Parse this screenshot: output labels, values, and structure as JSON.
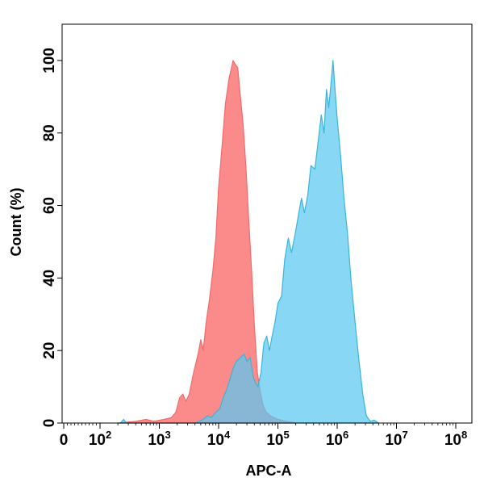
{
  "chart_data": {
    "type": "area",
    "xlabel": "APC-A",
    "ylabel": "Count (%)",
    "x_scale": "biexponential-log",
    "xlim": [
      0,
      100000000
    ],
    "ylim": [
      0,
      110
    ],
    "x_ticks": [
      {
        "value": 0,
        "base": "0",
        "exp": ""
      },
      {
        "value": 100,
        "base": "10",
        "exp": "2"
      },
      {
        "value": 1000,
        "base": "10",
        "exp": "3"
      },
      {
        "value": 10000,
        "base": "10",
        "exp": "4"
      },
      {
        "value": 100000,
        "base": "10",
        "exp": "5"
      },
      {
        "value": 1000000,
        "base": "10",
        "exp": "6"
      },
      {
        "value": 10000000,
        "base": "10",
        "exp": "7"
      },
      {
        "value": 100000000,
        "base": "10",
        "exp": "8"
      }
    ],
    "y_ticks": [
      0,
      20,
      40,
      60,
      80,
      100
    ],
    "grid": false,
    "series": [
      {
        "color": "#f26b6b",
        "fill": "rgba(250,100,100,0.75)",
        "points": [
          [
            200,
            0
          ],
          [
            400,
            0.5
          ],
          [
            600,
            1
          ],
          [
            800,
            0.5
          ],
          [
            1200,
            1
          ],
          [
            1600,
            1.5
          ],
          [
            1900,
            3
          ],
          [
            2200,
            7
          ],
          [
            2500,
            8
          ],
          [
            2800,
            6
          ],
          [
            3200,
            8
          ],
          [
            3800,
            14
          ],
          [
            4500,
            19
          ],
          [
            5000,
            23
          ],
          [
            5500,
            20
          ],
          [
            6200,
            28
          ],
          [
            7000,
            34
          ],
          [
            8000,
            42
          ],
          [
            9000,
            51
          ],
          [
            10000,
            65
          ],
          [
            11500,
            77
          ],
          [
            13000,
            88
          ],
          [
            15000,
            95
          ],
          [
            16500,
            98
          ],
          [
            17500,
            100
          ],
          [
            19000,
            99
          ],
          [
            21000,
            98
          ],
          [
            23000,
            91
          ],
          [
            26000,
            82
          ],
          [
            29000,
            70
          ],
          [
            32000,
            57
          ],
          [
            36000,
            42
          ],
          [
            40000,
            27
          ],
          [
            45000,
            14
          ],
          [
            50000,
            9
          ],
          [
            56000,
            5
          ],
          [
            63000,
            3
          ],
          [
            75000,
            2
          ],
          [
            100000,
            1
          ],
          [
            140000,
            0.5
          ],
          [
            200000,
            0
          ]
        ]
      },
      {
        "color": "#3ab5d8",
        "fill": "rgba(90,200,240,0.72)",
        "points": [
          [
            220,
            0
          ],
          [
            250,
            1
          ],
          [
            280,
            0
          ],
          [
            700,
            0
          ],
          [
            4000,
            0
          ],
          [
            5500,
            1
          ],
          [
            6500,
            2
          ],
          [
            7500,
            1.5
          ],
          [
            9000,
            3
          ],
          [
            10500,
            4
          ],
          [
            12000,
            7
          ],
          [
            13500,
            9
          ],
          [
            15500,
            12
          ],
          [
            17500,
            15
          ],
          [
            20000,
            17
          ],
          [
            23000,
            18
          ],
          [
            27000,
            19
          ],
          [
            30000,
            17
          ],
          [
            34000,
            18
          ],
          [
            38000,
            13
          ],
          [
            42000,
            11
          ],
          [
            46000,
            10
          ],
          [
            52000,
            14
          ],
          [
            58000,
            22
          ],
          [
            65000,
            24
          ],
          [
            72000,
            20
          ],
          [
            80000,
            24
          ],
          [
            90000,
            28
          ],
          [
            100000,
            33
          ],
          [
            115000,
            35
          ],
          [
            130000,
            45
          ],
          [
            150000,
            51
          ],
          [
            170000,
            47
          ],
          [
            195000,
            52
          ],
          [
            220000,
            57
          ],
          [
            250000,
            62
          ],
          [
            280000,
            58
          ],
          [
            320000,
            63
          ],
          [
            360000,
            71
          ],
          [
            420000,
            70
          ],
          [
            480000,
            78
          ],
          [
            540000,
            85
          ],
          [
            600000,
            80
          ],
          [
            660000,
            92
          ],
          [
            720000,
            87
          ],
          [
            780000,
            93
          ],
          [
            850000,
            100
          ],
          [
            920000,
            92
          ],
          [
            1000000,
            84
          ],
          [
            1150000,
            73
          ],
          [
            1300000,
            62
          ],
          [
            1500000,
            52
          ],
          [
            1700000,
            40
          ],
          [
            2000000,
            28
          ],
          [
            2300000,
            18
          ],
          [
            2700000,
            8
          ],
          [
            3100000,
            2
          ],
          [
            3600000,
            0.5
          ],
          [
            4200000,
            0.8
          ],
          [
            5000000,
            0
          ]
        ]
      }
    ]
  }
}
